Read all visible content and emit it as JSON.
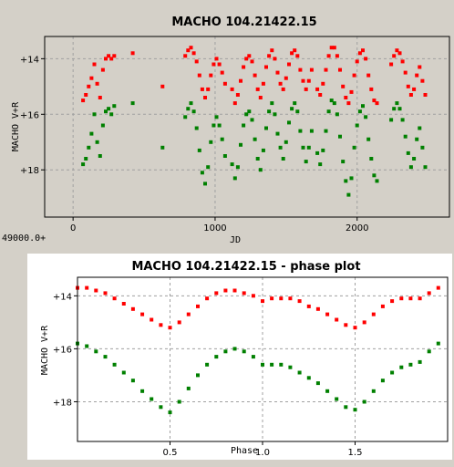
{
  "chart_data": [
    {
      "type": "scatter",
      "title": "MACHO 104.21422.15",
      "xlabel": "JD",
      "ylabel": "MACHO V+R",
      "x_offset_label": "49000.0+",
      "xlim": [
        -200,
        2650
      ],
      "ylim": [
        13.2,
        19.7
      ],
      "y_inverted": true,
      "grid": true,
      "x_ticks": [
        "0",
        "1000",
        "2000"
      ],
      "y_ticks": [
        "+14",
        "+16",
        "+18"
      ],
      "colors": {
        "red": "#ff0000",
        "green": "#008000"
      },
      "series": [
        {
          "color": "red",
          "x": [
            70,
            90,
            110,
            130,
            150,
            170,
            190,
            210,
            230,
            250,
            270,
            290,
            420,
            630,
            790,
            810,
            830,
            850,
            870,
            890,
            910,
            930,
            950,
            970,
            990,
            1010,
            1030,
            1050,
            1070,
            1120,
            1140,
            1160,
            1180,
            1200,
            1220,
            1240,
            1260,
            1280,
            1300,
            1320,
            1340,
            1360,
            1380,
            1400,
            1420,
            1440,
            1460,
            1480,
            1500,
            1520,
            1540,
            1560,
            1580,
            1600,
            1620,
            1640,
            1660,
            1680,
            1720,
            1740,
            1760,
            1780,
            1800,
            1820,
            1840,
            1860,
            1880,
            1900,
            1920,
            1940,
            1960,
            1980,
            2000,
            2020,
            2040,
            2060,
            2080,
            2100,
            2120,
            2140,
            2240,
            2260,
            2280,
            2300,
            2320,
            2340,
            2360,
            2380,
            2400,
            2420,
            2440,
            2460,
            2480
          ],
          "y": [
            15.5,
            15.3,
            15.0,
            14.7,
            14.2,
            14.9,
            15.4,
            14.4,
            14.0,
            13.9,
            14.0,
            13.9,
            13.8,
            15.0,
            13.9,
            13.7,
            13.6,
            13.8,
            14.1,
            14.6,
            15.1,
            15.4,
            15.1,
            14.6,
            14.2,
            14.0,
            14.2,
            14.5,
            14.9,
            15.1,
            15.6,
            15.3,
            14.8,
            14.3,
            14.0,
            13.9,
            14.1,
            14.6,
            15.1,
            15.4,
            14.9,
            14.3,
            13.9,
            13.7,
            14.0,
            14.5,
            14.9,
            15.1,
            14.7,
            14.2,
            13.8,
            13.7,
            13.9,
            14.4,
            14.8,
            15.1,
            14.8,
            14.4,
            15.1,
            15.3,
            14.9,
            14.4,
            13.9,
            13.6,
            13.6,
            13.9,
            14.4,
            15.0,
            15.4,
            15.6,
            15.2,
            14.6,
            14.1,
            13.8,
            13.7,
            14.0,
            14.6,
            15.1,
            15.5,
            15.6,
            14.2,
            13.9,
            13.7,
            13.8,
            14.1,
            14.5,
            15.0,
            15.3,
            15.1,
            14.6,
            14.3,
            14.8,
            15.3
          ]
        },
        {
          "color": "green",
          "x": [
            70,
            90,
            110,
            130,
            150,
            170,
            190,
            210,
            230,
            250,
            270,
            290,
            420,
            630,
            790,
            810,
            830,
            850,
            870,
            890,
            910,
            930,
            950,
            970,
            990,
            1010,
            1030,
            1050,
            1070,
            1120,
            1140,
            1160,
            1180,
            1200,
            1220,
            1240,
            1260,
            1280,
            1300,
            1320,
            1340,
            1360,
            1380,
            1400,
            1420,
            1440,
            1460,
            1480,
            1500,
            1520,
            1540,
            1560,
            1580,
            1600,
            1620,
            1640,
            1660,
            1680,
            1720,
            1740,
            1760,
            1780,
            1800,
            1820,
            1840,
            1860,
            1880,
            1900,
            1920,
            1940,
            1960,
            1980,
            2000,
            2020,
            2040,
            2060,
            2080,
            2100,
            2120,
            2140,
            2240,
            2260,
            2280,
            2300,
            2320,
            2340,
            2360,
            2380,
            2400,
            2420,
            2440,
            2460,
            2480
          ],
          "y": [
            17.8,
            17.6,
            17.2,
            16.7,
            16.0,
            17.0,
            17.5,
            16.4,
            15.9,
            15.8,
            16.0,
            15.7,
            15.6,
            17.2,
            16.1,
            15.8,
            15.6,
            15.9,
            16.5,
            17.3,
            18.1,
            18.5,
            17.9,
            17.0,
            16.4,
            16.1,
            16.4,
            16.9,
            17.5,
            17.8,
            18.3,
            17.9,
            17.1,
            16.4,
            16.0,
            15.9,
            16.2,
            16.9,
            17.6,
            18.0,
            17.3,
            16.5,
            15.9,
            15.6,
            16.0,
            16.7,
            17.2,
            17.6,
            17.0,
            16.3,
            15.8,
            15.6,
            15.9,
            16.6,
            17.2,
            17.7,
            17.2,
            16.6,
            17.4,
            17.8,
            17.3,
            16.6,
            15.9,
            15.5,
            15.6,
            16.0,
            16.8,
            17.7,
            18.4,
            18.9,
            18.3,
            17.2,
            16.4,
            15.9,
            15.7,
            16.1,
            16.9,
            17.6,
            18.2,
            18.4,
            16.2,
            15.8,
            15.6,
            15.8,
            16.2,
            16.8,
            17.4,
            17.9,
            17.6,
            16.9,
            16.5,
            17.2,
            17.9
          ]
        }
      ]
    },
    {
      "type": "scatter",
      "title": "MACHO 104.21422.15 - phase plot",
      "xlabel": "Phase",
      "ylabel": "MACHO V+R",
      "xlim": [
        0,
        2
      ],
      "ylim": [
        13.3,
        19.5
      ],
      "y_inverted": true,
      "grid": true,
      "x_ticks": [
        "0.5",
        "1.0",
        "1.5"
      ],
      "y_ticks": [
        "+14",
        "+16",
        "+18"
      ],
      "colors": {
        "red": "#ff0000",
        "green": "#008000"
      },
      "series": [
        {
          "color": "red",
          "x": [
            0.0,
            0.05,
            0.1,
            0.15,
            0.2,
            0.25,
            0.3,
            0.35,
            0.4,
            0.45,
            0.5,
            0.55,
            0.6,
            0.65,
            0.7,
            0.75,
            0.8,
            0.85,
            0.9,
            0.95,
            1.0,
            1.05,
            1.1,
            1.15,
            1.2,
            1.25,
            1.3,
            1.35,
            1.4,
            1.45,
            1.5,
            1.55,
            1.6,
            1.65,
            1.7,
            1.75,
            1.8,
            1.85,
            1.9,
            1.95
          ],
          "y": [
            13.7,
            13.7,
            13.8,
            13.9,
            14.1,
            14.3,
            14.5,
            14.7,
            14.9,
            15.1,
            15.2,
            15.0,
            14.7,
            14.4,
            14.1,
            13.9,
            13.8,
            13.8,
            13.9,
            14.0,
            14.2,
            14.1,
            14.1,
            14.1,
            14.2,
            14.4,
            14.5,
            14.7,
            14.9,
            15.1,
            15.2,
            15.0,
            14.7,
            14.4,
            14.2,
            14.1,
            14.1,
            14.1,
            13.9,
            13.7
          ]
        },
        {
          "color": "green",
          "x": [
            0.0,
            0.05,
            0.1,
            0.15,
            0.2,
            0.25,
            0.3,
            0.35,
            0.4,
            0.45,
            0.5,
            0.55,
            0.6,
            0.65,
            0.7,
            0.75,
            0.8,
            0.85,
            0.9,
            0.95,
            1.0,
            1.05,
            1.1,
            1.15,
            1.2,
            1.25,
            1.3,
            1.35,
            1.4,
            1.45,
            1.5,
            1.55,
            1.6,
            1.65,
            1.7,
            1.75,
            1.8,
            1.85,
            1.9,
            1.95
          ],
          "y": [
            15.8,
            15.9,
            16.1,
            16.3,
            16.6,
            16.9,
            17.2,
            17.6,
            17.9,
            18.2,
            18.4,
            18.0,
            17.5,
            17.0,
            16.6,
            16.3,
            16.1,
            16.0,
            16.1,
            16.3,
            16.6,
            16.6,
            16.6,
            16.7,
            16.9,
            17.1,
            17.3,
            17.6,
            17.9,
            18.2,
            18.3,
            18.0,
            17.6,
            17.2,
            16.9,
            16.7,
            16.6,
            16.5,
            16.1,
            15.8
          ]
        }
      ]
    }
  ]
}
